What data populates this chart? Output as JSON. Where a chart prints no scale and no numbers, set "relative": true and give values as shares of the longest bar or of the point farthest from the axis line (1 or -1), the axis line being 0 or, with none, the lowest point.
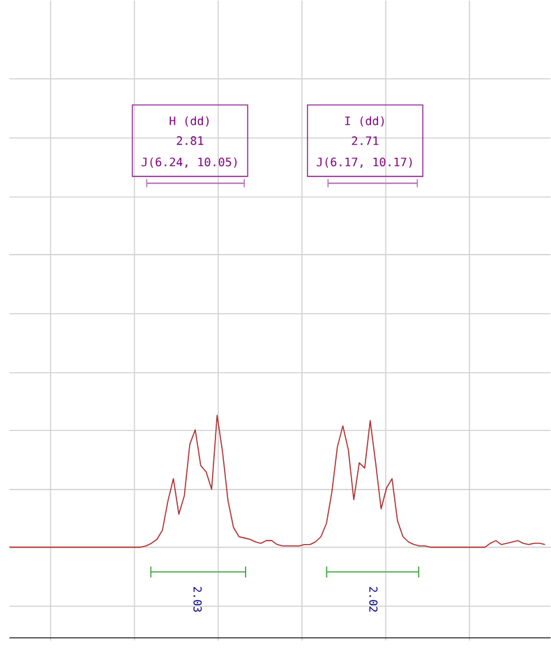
{
  "chart_data": {
    "type": "line",
    "relative": true,
    "color": "#b03030",
    "grid": true,
    "categories": [
      null,
      null,
      null,
      null,
      null,
      null,
      null,
      null,
      null,
      null,
      null,
      null,
      null,
      null,
      null,
      null,
      null,
      null,
      null,
      null,
      null,
      null,
      null,
      null,
      null,
      null,
      null,
      null,
      null,
      null,
      null,
      null,
      null,
      null,
      null,
      null,
      null,
      null,
      null,
      null,
      null,
      null,
      null,
      null,
      null,
      null,
      null,
      null,
      null,
      null,
      null,
      null,
      null,
      null,
      null,
      null,
      null,
      null,
      null,
      null,
      null,
      null,
      null,
      null,
      null,
      null,
      null,
      null,
      null,
      null,
      null,
      null,
      null,
      null,
      null,
      null,
      null,
      null,
      null,
      null,
      null,
      null,
      null,
      null,
      null,
      null,
      null,
      null,
      null,
      null,
      null,
      null,
      null,
      null,
      null,
      null,
      null,
      null,
      null
    ],
    "values": [
      0,
      0,
      0,
      0,
      0,
      0,
      0,
      0,
      0,
      0,
      0,
      0,
      0,
      0,
      0,
      0,
      0,
      0,
      0,
      0,
      0,
      0,
      0,
      0,
      0,
      0.01,
      0.03,
      0.06,
      0.13,
      0.35,
      0.52,
      0.25,
      0.39,
      0.78,
      0.89,
      0.62,
      0.57,
      0.44,
      1.0,
      0.72,
      0.35,
      0.15,
      0.08,
      0.07,
      0.06,
      0.04,
      0.03,
      0.05,
      0.05,
      0.02,
      0.01,
      0.01,
      0.01,
      0.01,
      0.02,
      0.02,
      0.04,
      0.08,
      0.18,
      0.42,
      0.76,
      0.92,
      0.74,
      0.36,
      0.64,
      0.6,
      0.96,
      0.64,
      0.29,
      0.45,
      0.52,
      0.2,
      0.08,
      0.04,
      0.02,
      0.01,
      0.01,
      0,
      0,
      0,
      0,
      0,
      0,
      0,
      0,
      0,
      0,
      0,
      0.03,
      0.05,
      0.02,
      0.03,
      0.04,
      0.05,
      0.03,
      0.02,
      0.03,
      0.03,
      0.02
    ],
    "annotations": [
      "H (dd)",
      "2.81",
      "J(6.24, 10.05)",
      "I (dd)",
      "2.71",
      "J(6.17, 10.17)",
      "2.03",
      "2.02"
    ]
  }
}
